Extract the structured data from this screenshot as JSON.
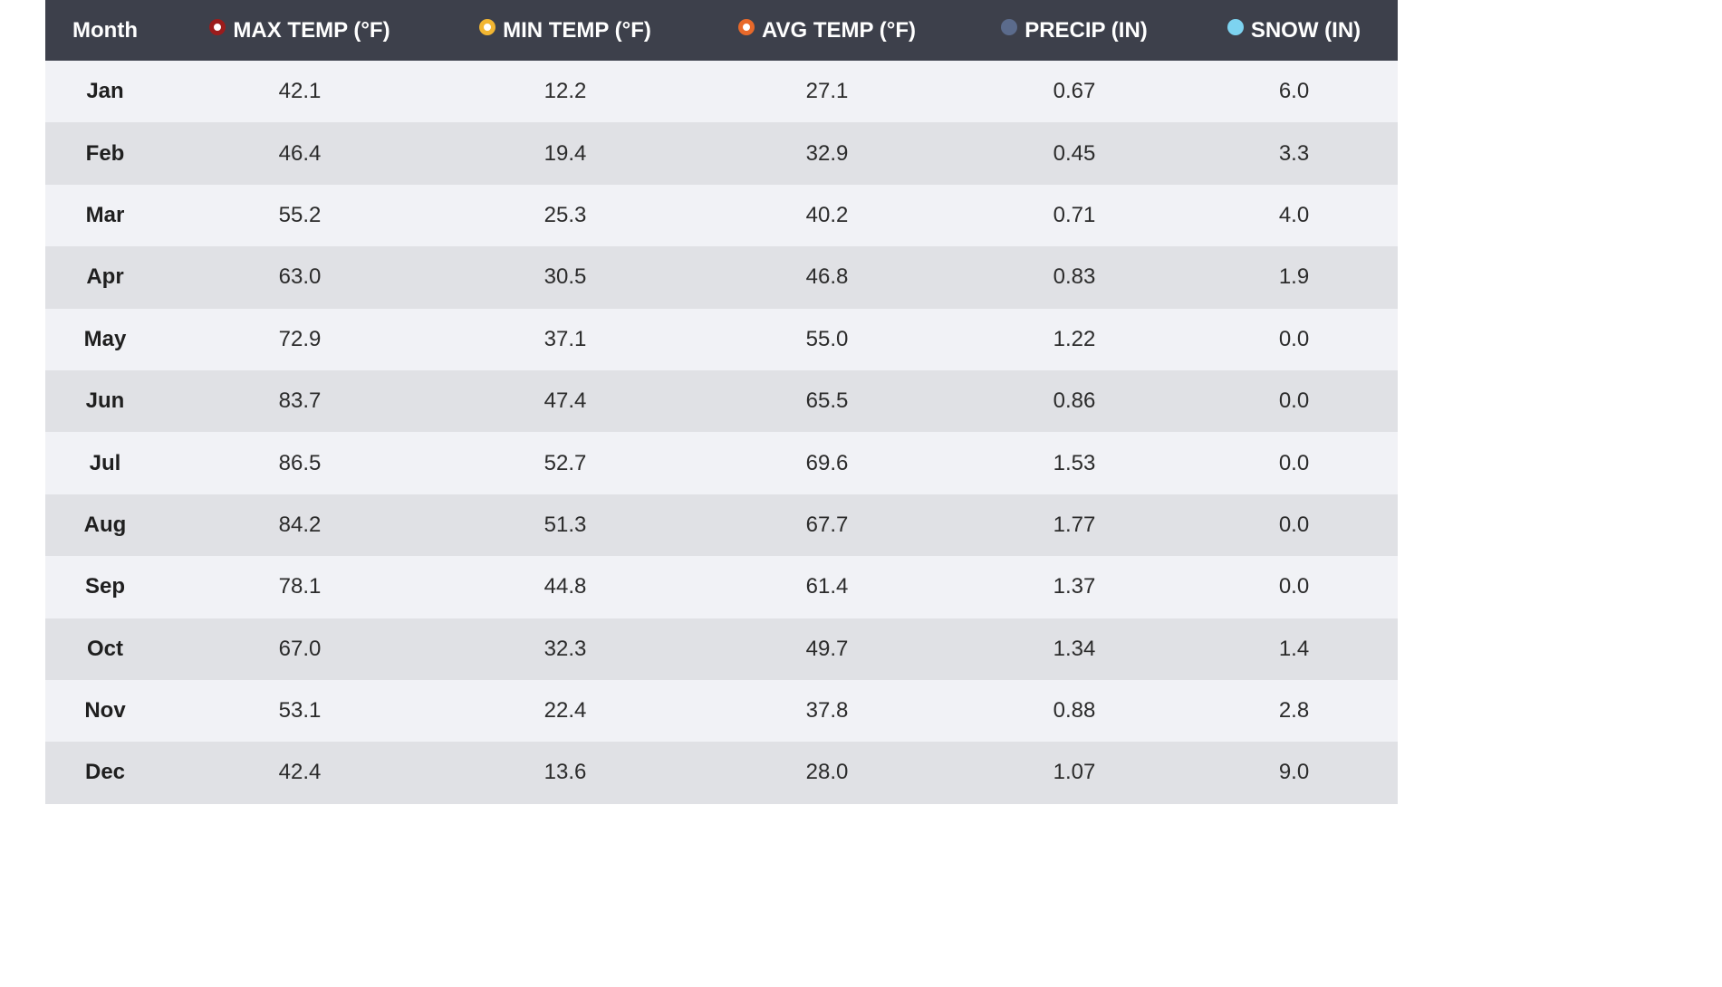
{
  "chart_data": {
    "type": "table",
    "columns": [
      {
        "key": "month",
        "label": "Month"
      },
      {
        "key": "max",
        "label": "MAX TEMP (°F)",
        "dot_color": "#ffffff",
        "dot_ring": "#9b1c1c"
      },
      {
        "key": "min",
        "label": "MIN TEMP (°F)",
        "dot_color": "#ffffff",
        "dot_ring": "#f2b632"
      },
      {
        "key": "avg",
        "label": "AVG TEMP (°F)",
        "dot_color": "#ffffff",
        "dot_ring": "#e8692a"
      },
      {
        "key": "precip",
        "label": "PRECIP (IN)",
        "dot_color": "#5b6b8c",
        "dot_ring": "#5b6b8c"
      },
      {
        "key": "snow",
        "label": "SNOW (IN)",
        "dot_color": "#7dd3f0",
        "dot_ring": "#7dd3f0"
      }
    ],
    "rows": [
      [
        "Jan",
        "42.1",
        "12.2",
        "27.1",
        "0.67",
        "6.0"
      ],
      [
        "Feb",
        "46.4",
        "19.4",
        "32.9",
        "0.45",
        "3.3"
      ],
      [
        "Mar",
        "55.2",
        "25.3",
        "40.2",
        "0.71",
        "4.0"
      ],
      [
        "Apr",
        "63.0",
        "30.5",
        "46.8",
        "0.83",
        "1.9"
      ],
      [
        "May",
        "72.9",
        "37.1",
        "55.0",
        "1.22",
        "0.0"
      ],
      [
        "Jun",
        "83.7",
        "47.4",
        "65.5",
        "0.86",
        "0.0"
      ],
      [
        "Jul",
        "86.5",
        "52.7",
        "69.6",
        "1.53",
        "0.0"
      ],
      [
        "Aug",
        "84.2",
        "51.3",
        "67.7",
        "1.77",
        "0.0"
      ],
      [
        "Sep",
        "78.1",
        "44.8",
        "61.4",
        "1.37",
        "0.0"
      ],
      [
        "Oct",
        "67.0",
        "32.3",
        "49.7",
        "1.34",
        "1.4"
      ],
      [
        "Nov",
        "53.1",
        "22.4",
        "37.8",
        "0.88",
        "2.8"
      ],
      [
        "Dec",
        "42.4",
        "13.6",
        "28.0",
        "1.07",
        "9.0"
      ]
    ]
  }
}
